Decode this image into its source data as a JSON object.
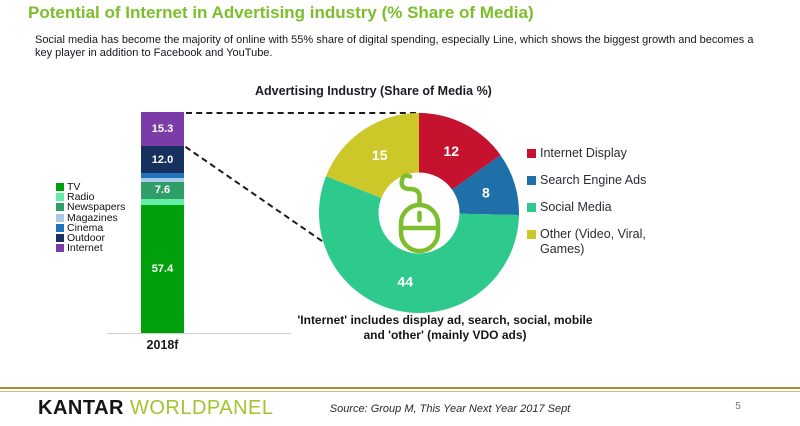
{
  "title": "Potential of Internet in Advertising industry (% Share of Media)",
  "subtitle": "Social media has become the majority of online with 55% share of digital spending, especially Line, which shows the biggest growth and becomes a key player in addition to Facebook and YouTube.",
  "colors": {
    "title_green": "#7CBE2B",
    "logo_green": "#A3C431",
    "footer_rule_gold": "#A5913A",
    "callout_line": "#1C1C1C",
    "mouse_icon_green": "#7DBE2E"
  },
  "chart_data": [
    {
      "type": "bar",
      "stacked": true,
      "title": "",
      "categories": [
        "2018f"
      ],
      "ylim": [
        0,
        100
      ],
      "grid": false,
      "legend_position": "left",
      "series": [
        {
          "name": "TV",
          "values": [
            57.4
          ],
          "display_label": "57.4",
          "color": "#00A00C"
        },
        {
          "name": "Radio",
          "values": [
            2.7
          ],
          "display_label": "",
          "color": "#63EFA5",
          "estimated": true
        },
        {
          "name": "Newspapers",
          "values": [
            7.6
          ],
          "display_label": "7.6",
          "color": "#2F9E68"
        },
        {
          "name": "Magazines",
          "values": [
            1.8
          ],
          "display_label": "",
          "color": "#A9CBE8",
          "estimated": true
        },
        {
          "name": "Cinema",
          "values": [
            2.2
          ],
          "display_label": "",
          "color": "#1F74BD",
          "estimated": true
        },
        {
          "name": "Outdoor",
          "values": [
            12.0
          ],
          "display_label": "12.0",
          "color": "#16315E"
        },
        {
          "name": "Internet",
          "values": [
            15.3
          ],
          "display_label": "15.3",
          "color": "#7B3CA8"
        }
      ]
    },
    {
      "type": "pie",
      "subtype": "donut",
      "title": "Advertising Industry (Share of Media %)",
      "labels": [
        "Internet Display",
        "Search Engine Ads",
        "Social Media",
        "Other (Video, Viral, Games)"
      ],
      "values": [
        12,
        8,
        44,
        15
      ],
      "display_labels": [
        "12",
        "8",
        "44",
        "15"
      ],
      "colors": [
        "#C5122E",
        "#1F6FA8",
        "#2EC98C",
        "#CCC829"
      ],
      "legend_position": "right",
      "start_angle_deg": 0,
      "direction": "clockwise",
      "center_icon": "computer-mouse-icon"
    }
  ],
  "annotations": {
    "internet_note": "'Internet' includes display ad, search, social, mobile and 'other' (mainly VDO ads)"
  },
  "footer": {
    "logo_kantar": "KANTAR",
    "logo_worldpanel": "WОRLDPANEL",
    "source": "Source: Group M, This Year Next Year 2017 Sept",
    "page_number": "5"
  }
}
